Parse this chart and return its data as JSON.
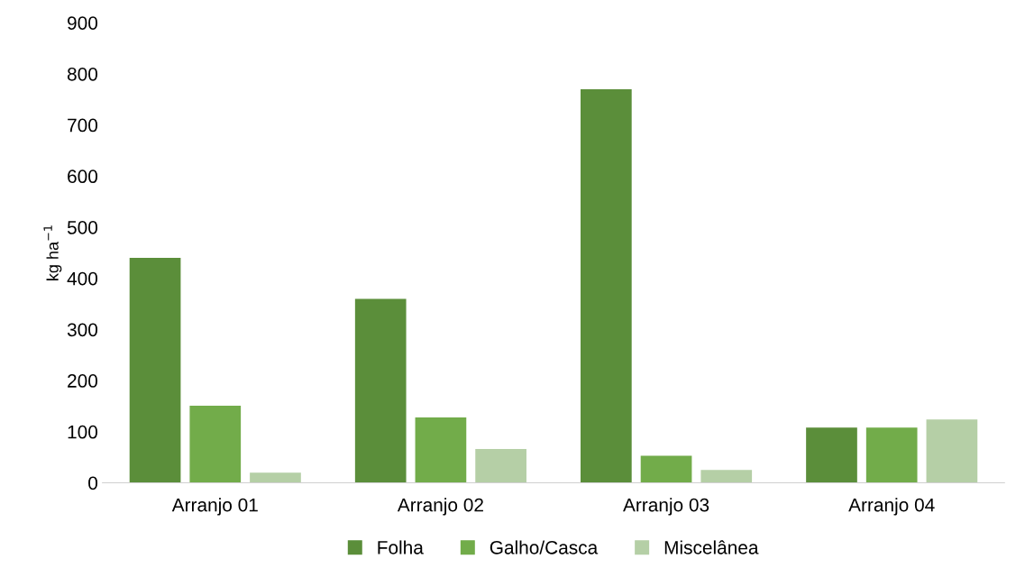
{
  "chart_data": {
    "type": "bar",
    "ylabel": "kg ha$^{−1}$",
    "categories": [
      "Arranjo 01",
      "Arranjo 02",
      "Arranjo 03",
      "Arranjo 04"
    ],
    "series": [
      {
        "name": "Folha",
        "color": "#5b8e3a",
        "values": [
          440,
          360,
          770,
          108
        ]
      },
      {
        "name": "Galho/Casca",
        "color": "#72ac4a",
        "values": [
          151,
          128,
          53,
          108
        ]
      },
      {
        "name": "Miscelânea",
        "color": "#b5cfa6",
        "values": [
          20,
          66,
          25,
          124
        ]
      }
    ],
    "ylim": [
      0,
      900
    ],
    "yticks": [
      0,
      100,
      200,
      300,
      400,
      500,
      600,
      700,
      800,
      900
    ],
    "grid": false,
    "legend": "bottom"
  }
}
